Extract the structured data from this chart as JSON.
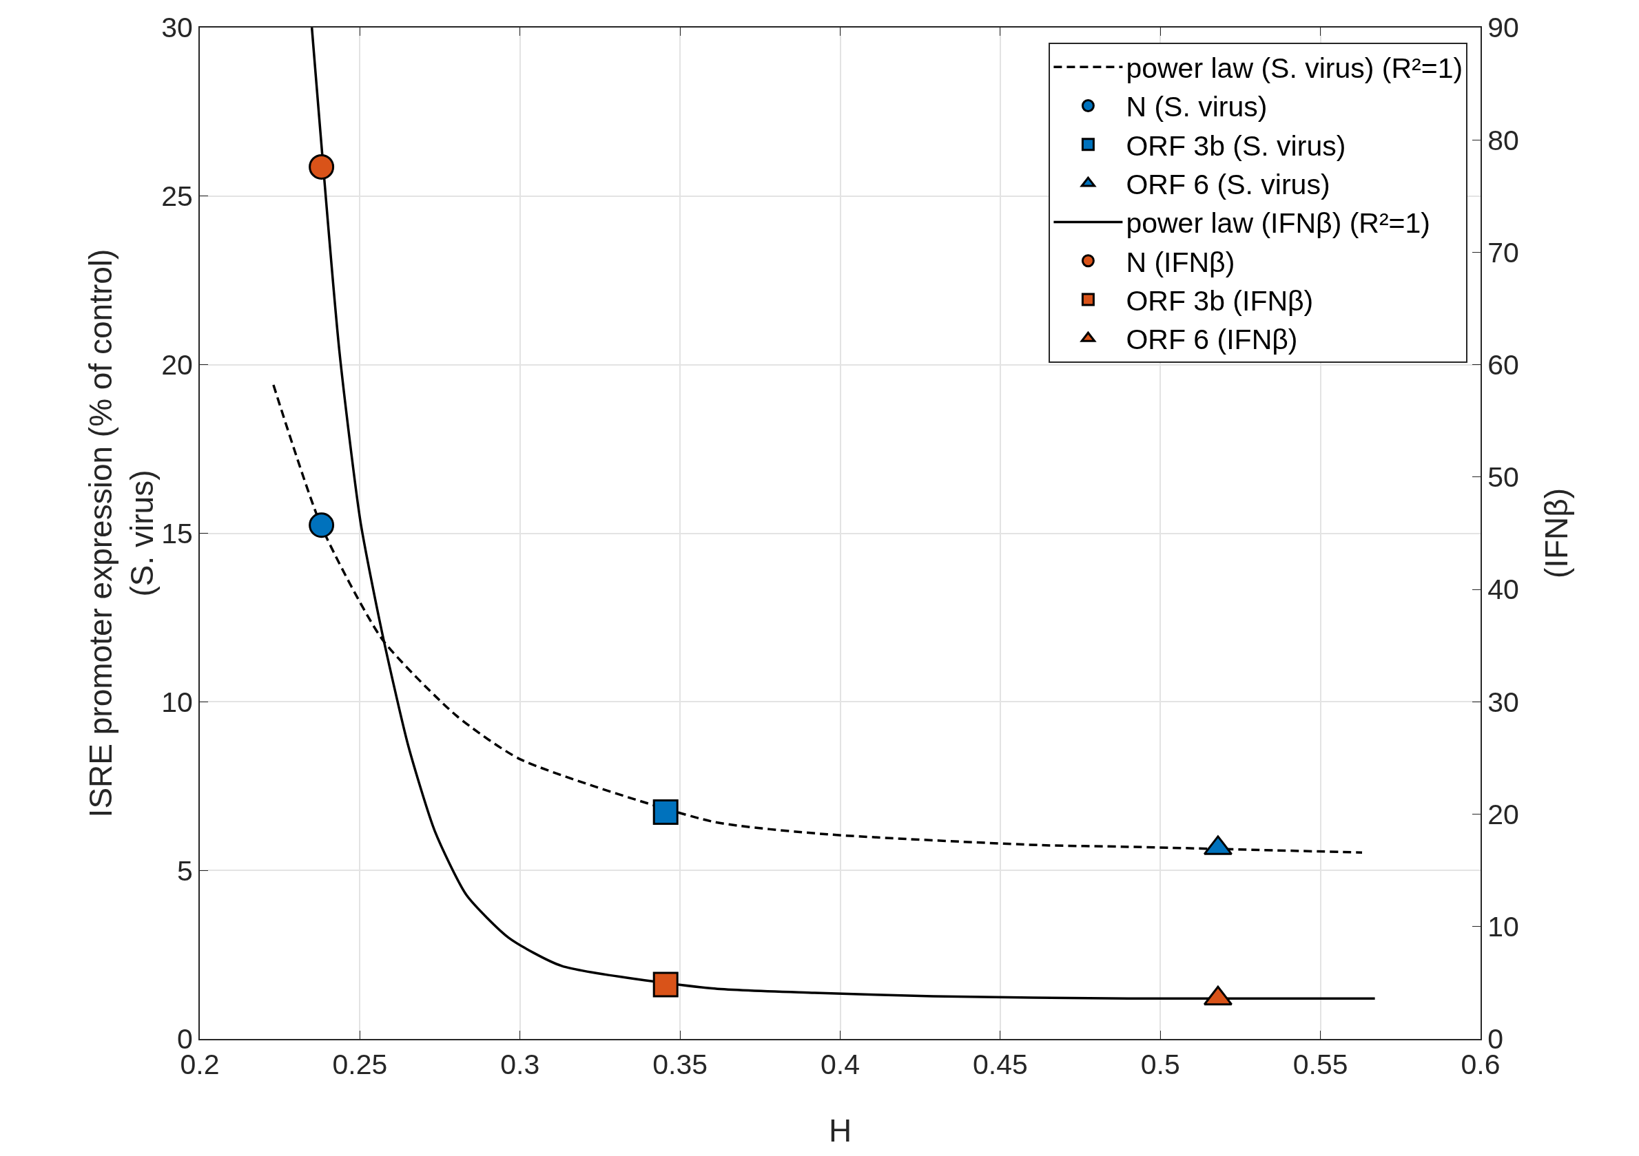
{
  "chart_data": {
    "type": "scatter",
    "xlabel": "H",
    "ylabel": "ISRE promoter expression (% of control)\n(S. virus)",
    "y2label": "(IFNβ)",
    "xlim": [
      0.2,
      0.6
    ],
    "xticks": [
      0.2,
      0.25,
      0.3,
      0.35,
      0.4,
      0.45,
      0.5,
      0.55,
      0.6
    ],
    "ylim": [
      0,
      30
    ],
    "yticks": [
      0,
      5,
      10,
      15,
      20,
      25,
      30
    ],
    "y2lim": [
      0,
      90
    ],
    "y2ticks": [
      0,
      10,
      20,
      30,
      40,
      50,
      60,
      70,
      80,
      90
    ],
    "grid": true,
    "legend": "top right",
    "series": [
      {
        "name": "power law (S. virus) (R²=1)",
        "type": "line",
        "line_style": "dashed",
        "marker": "none",
        "color": "#000000",
        "x": [
          0.223,
          0.238,
          0.257,
          0.28,
          0.3,
          0.36,
          0.396,
          0.462,
          0.49,
          0.563
        ],
        "values": [
          19.4,
          15.2,
          11.85,
          9.6,
          8.3,
          6.45,
          6.07,
          5.75,
          5.7,
          5.53
        ]
      },
      {
        "name": "N (S. virus)",
        "marker": "circle",
        "color": "#0072bd",
        "x": [
          0.238
        ],
        "values": [
          15.24
        ]
      },
      {
        "name": "ORF 3b (S. virus)",
        "marker": "square",
        "color": "#0072bd",
        "x": [
          0.3455
        ],
        "values": [
          6.73
        ]
      },
      {
        "name": "ORF 6 (S. virus)",
        "marker": "triangle",
        "color": "#0072bd",
        "x": [
          0.518
        ],
        "values": [
          5.66
        ]
      },
      {
        "name": "power law (IFNβ) (R²=1)",
        "type": "line",
        "line_style": "solid",
        "marker": "none",
        "color": "#000000",
        "axis": "y2",
        "x": [
          0.235,
          0.2436,
          0.2502,
          0.2569,
          0.2651,
          0.2734,
          0.2833,
          0.2965,
          0.313,
          0.36,
          0.392,
          0.429,
          0.49,
          0.567
        ],
        "values": [
          90,
          61.2,
          46,
          36.2,
          26.1,
          18.5,
          12.8,
          9,
          6.5,
          4.5,
          4.1,
          3.8,
          3.6,
          3.6
        ]
      },
      {
        "name": "N (IFNβ)",
        "marker": "circle",
        "color": "#d95319",
        "axis": "y2",
        "x": [
          0.238
        ],
        "values": [
          77.6
        ]
      },
      {
        "name": "ORF 3b (IFNβ)",
        "marker": "square",
        "color": "#d95319",
        "axis": "y2",
        "x": [
          0.3455
        ],
        "values": [
          4.84
        ]
      },
      {
        "name": "ORF 6 (IFNβ)",
        "marker": "triangle",
        "color": "#d95319",
        "axis": "y2",
        "x": [
          0.518
        ],
        "values": [
          3.6
        ]
      }
    ]
  }
}
